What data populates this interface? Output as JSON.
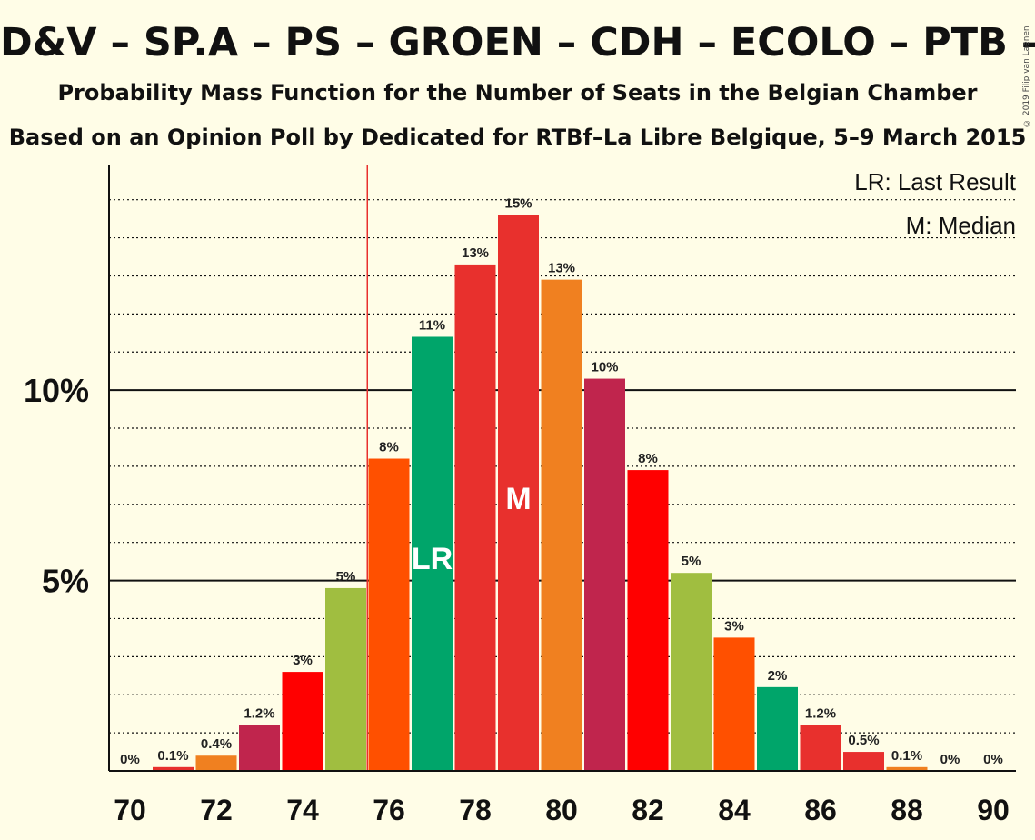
{
  "title": "D&V – SP.A – PS – GROEN – CDH – ECOLO – PTB – PVDA",
  "subtitle1": "Probability Mass Function for the Number of Seats in the Belgian Chamber",
  "subtitle2": "Based on an Opinion Poll by Dedicated for RTBf–La Libre Belgique, 5–9 March 2015",
  "copyright": "© 2019 Filip van Laenen",
  "legend": {
    "lr": "LR: Last Result",
    "m": "M: Median"
  },
  "markers": {
    "lr_label": "LR",
    "median_label": "M"
  },
  "chart_data": {
    "type": "bar",
    "categories": [
      70,
      71,
      72,
      73,
      74,
      75,
      76,
      77,
      78,
      79,
      80,
      81,
      82,
      83,
      84,
      85,
      86,
      87,
      88,
      89,
      90
    ],
    "values": [
      0,
      0.1,
      0.4,
      1.2,
      2.6,
      4.8,
      8.2,
      11.4,
      13.3,
      14.6,
      12.9,
      10.3,
      7.9,
      5.2,
      3.5,
      2.2,
      1.2,
      0.5,
      0.1,
      0,
      0
    ],
    "value_labels": [
      "0%",
      "0.1%",
      "0.4%",
      "1.2%",
      "3%",
      "5%",
      "8%",
      "11%",
      "13%",
      "15%",
      "13%",
      "10%",
      "8%",
      "5%",
      "3%",
      "2%",
      "1.2%",
      "0.5%",
      "0.1%",
      "0%",
      "0%"
    ],
    "colors": [
      "#F08020",
      "#E8302D",
      "#F08020",
      "#C0254D",
      "#FF0000",
      "#A0BE40",
      "#FF5000",
      "#00A56A",
      "#E8302D",
      "#E8302D",
      "#F08020",
      "#C0254D",
      "#FF0000",
      "#A0BE40",
      "#FF5000",
      "#00A56A",
      "#E8302D",
      "#E8302D",
      "#F08020",
      "#C0254D",
      "#FF0000"
    ],
    "x_tick_labels": [
      "70",
      "72",
      "74",
      "76",
      "78",
      "80",
      "82",
      "84",
      "86",
      "88",
      "90"
    ],
    "y_tick_labels": [
      "5%",
      "10%"
    ],
    "y_ticks": [
      5,
      10
    ],
    "ylim": [
      0,
      15.9
    ],
    "last_result": 77,
    "median": 79,
    "majority_line_x": 75.5,
    "grid": true
  }
}
